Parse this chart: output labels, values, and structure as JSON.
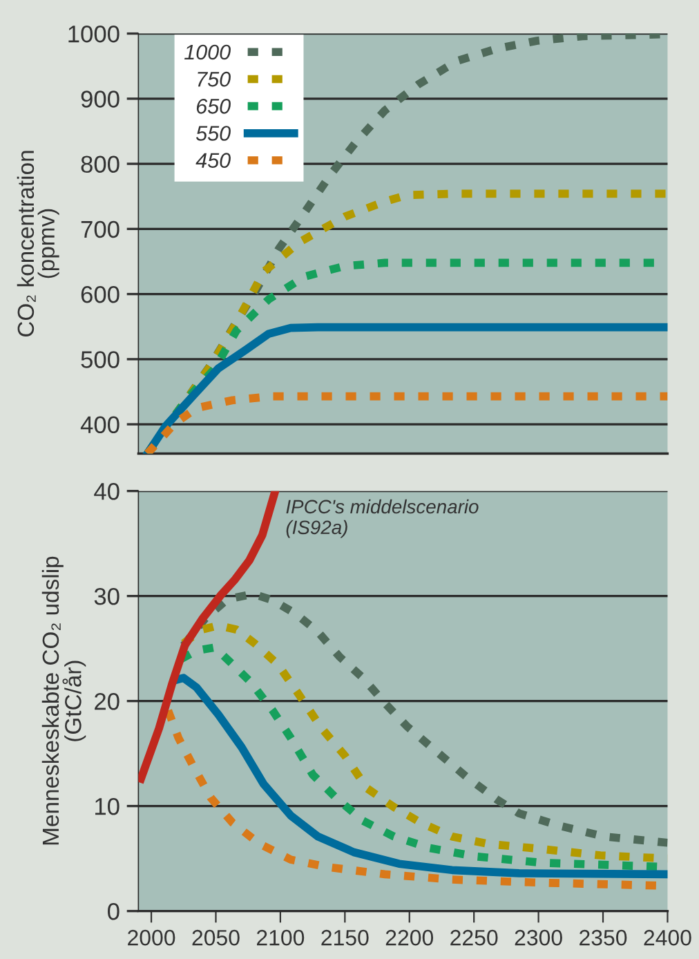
{
  "chart_data": [
    {
      "type": "line",
      "ylabel": "CO₂ koncentration\n(ppmv)",
      "xlim": [
        1990,
        2400
      ],
      "ylim": [
        355,
        1000
      ],
      "yticks": [
        400,
        500,
        600,
        700,
        800,
        900,
        1000
      ],
      "tick_labels": "y",
      "grid": "y",
      "legend": "top left",
      "series": [
        {
          "name": "1000",
          "color": "#4f6a5a",
          "line_style": "dotted",
          "x": [
            1997,
            2008,
            2028,
            2047,
            2065,
            2082,
            2099,
            2119,
            2138,
            2158,
            2181,
            2207,
            2237,
            2268,
            2299,
            2334,
            2400
          ],
          "values": [
            355,
            386,
            440,
            494,
            554,
            609,
            670,
            726,
            781,
            832,
            882,
            922,
            958,
            977,
            989,
            996,
            999
          ]
        },
        {
          "name": "750",
          "color": "#b39a00",
          "line_style": "dotted",
          "x": [
            1997,
            2008,
            2028,
            2047,
            2066,
            2087,
            2115,
            2150,
            2181,
            2198,
            2233,
            2400
          ],
          "values": [
            355,
            386,
            440,
            493,
            556,
            634,
            680,
            719,
            742,
            752,
            754,
            754
          ]
        },
        {
          "name": "650",
          "color": "#16a05c",
          "line_style": "dotted",
          "x": [
            1997,
            2008,
            2028,
            2049,
            2066,
            2091,
            2119,
            2150,
            2181,
            2400
          ],
          "values": [
            355,
            386,
            440,
            485,
            544,
            592,
            627,
            643,
            648,
            648
          ]
        },
        {
          "name": "550",
          "color": "#006c9c",
          "line_style": "solid",
          "x": [
            1997,
            2011,
            2032,
            2052,
            2073,
            2091,
            2108,
            2129,
            2400
          ],
          "values": [
            355,
            397,
            443,
            486,
            514,
            539,
            548,
            549,
            549
          ]
        },
        {
          "name": "450",
          "color": "#d9791a",
          "line_style": "dotted",
          "x": [
            1997,
            2018,
            2035,
            2063,
            2094,
            2400
          ],
          "values": [
            355,
            401,
            425,
            437,
            443,
            443
          ]
        }
      ]
    },
    {
      "type": "line",
      "ylabel": "Menneskeskabte CO₂ udslip\n(GtC/år)",
      "xlim": [
        1990,
        2400
      ],
      "xticks": [
        2000,
        2050,
        2100,
        2150,
        2200,
        2250,
        2300,
        2350,
        2400
      ],
      "ylim": [
        0,
        40
      ],
      "yticks": [
        0,
        10,
        20,
        30,
        40
      ],
      "grid": "y",
      "series": [
        {
          "color": "#4f6a5a",
          "line_style": "dotted",
          "x": [
            2025,
            2042,
            2059,
            2079,
            2094,
            2112,
            2129,
            2146,
            2164,
            2181,
            2198,
            2219,
            2244,
            2268,
            2285,
            2317,
            2351,
            2400
          ],
          "values": [
            25.3,
            27.9,
            29.7,
            30.2,
            29.6,
            28.3,
            26.6,
            24.2,
            22.2,
            19.8,
            17.6,
            15.4,
            12.8,
            10.6,
            9.3,
            8.1,
            7.1,
            6.5
          ]
        },
        {
          "color": "#b39a00",
          "line_style": "dotted",
          "x": [
            2025,
            2039,
            2052,
            2066,
            2080,
            2098,
            2115,
            2132,
            2150,
            2167,
            2188,
            2209,
            2233,
            2261,
            2303,
            2348,
            2400
          ],
          "values": [
            25.5,
            26.8,
            27.2,
            26.8,
            25.5,
            23.5,
            20.5,
            17.4,
            14.8,
            11.7,
            9.9,
            8.4,
            7.1,
            6.4,
            5.9,
            5.3,
            5.0
          ]
        },
        {
          "color": "#16a05c",
          "line_style": "dotted",
          "x": [
            2023,
            2035,
            2049,
            2063,
            2077,
            2094,
            2108,
            2125,
            2143,
            2164,
            2188,
            2216,
            2251,
            2303,
            2400
          ],
          "values": [
            24.0,
            24.8,
            25.1,
            23.5,
            21.8,
            19.1,
            16.5,
            13.0,
            10.8,
            8.6,
            7.1,
            6.0,
            5.2,
            4.6,
            4.2
          ]
        },
        {
          "color": "#006c9c",
          "line_style": "solid",
          "x": [
            2019,
            2025,
            2035,
            2052,
            2070,
            2087,
            2108,
            2129,
            2157,
            2192,
            2233,
            2285,
            2400
          ],
          "values": [
            22.0,
            22.2,
            21.3,
            18.7,
            15.6,
            12.1,
            9.1,
            7.1,
            5.6,
            4.5,
            3.9,
            3.6,
            3.5
          ]
        },
        {
          "color": "#d9791a",
          "line_style": "dotted",
          "x": [
            2013,
            2021,
            2032,
            2046,
            2063,
            2084,
            2108,
            2136,
            2181,
            2233,
            2303,
            2400
          ],
          "values": [
            19.1,
            16.5,
            13.9,
            10.8,
            8.4,
            6.4,
            4.9,
            4.2,
            3.5,
            3.0,
            2.7,
            2.4
          ]
        },
        {
          "name": "IPCC's middelscenario\n(IS92a)",
          "color": "#c0281e",
          "line_style": "solid",
          "x": [
            1992,
            2006,
            2016,
            2026,
            2040,
            2054,
            2065,
            2076,
            2086,
            2096
          ],
          "values": [
            12.6,
            17.4,
            21.6,
            25.3,
            27.9,
            30.1,
            31.6,
            33.4,
            35.8,
            40
          ]
        }
      ]
    }
  ]
}
